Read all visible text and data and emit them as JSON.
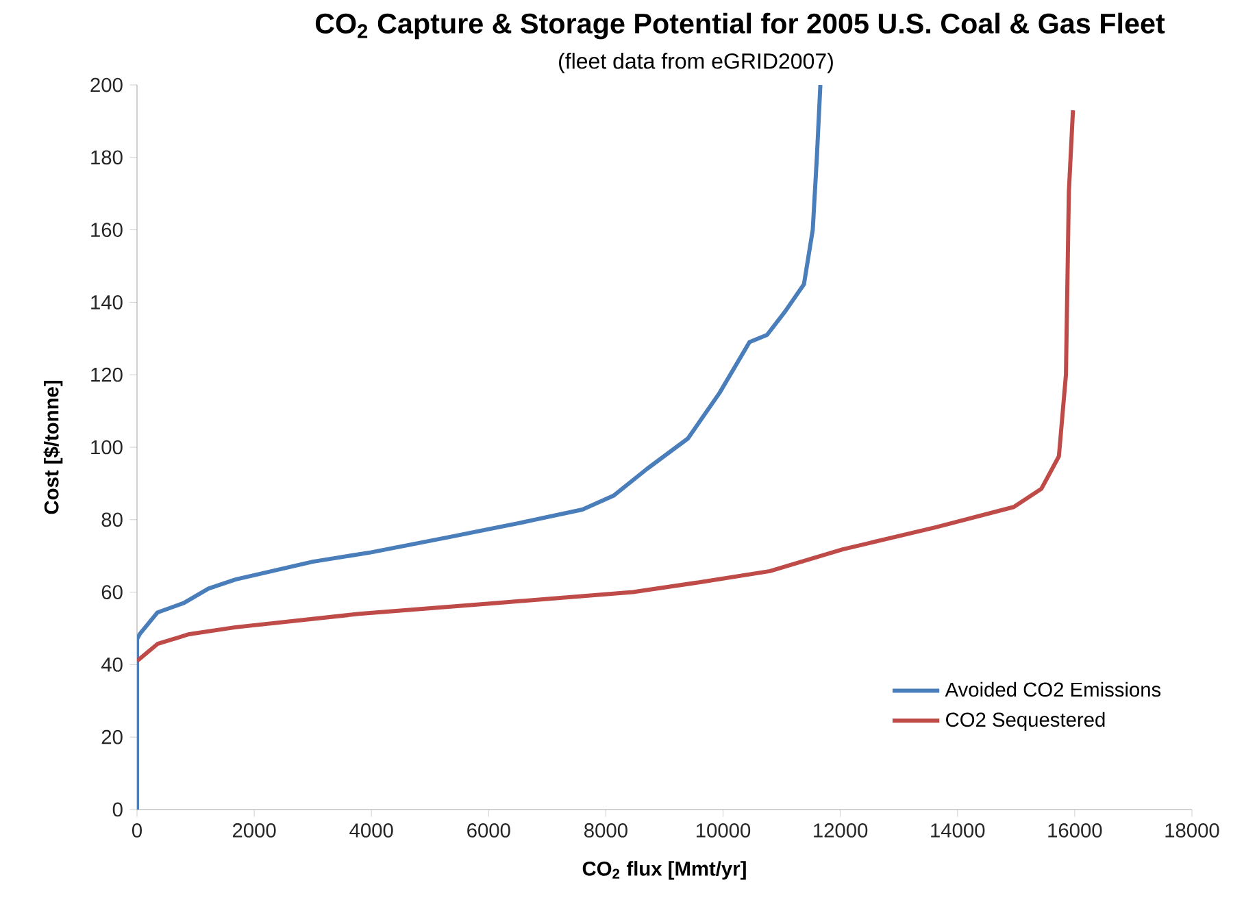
{
  "chart_data": {
    "type": "line",
    "title": "CO$_{2}$ Capture & Storage Potential for 2005 U.S. Coal & Gas Fleet",
    "subtitle": "(fleet data from eGRID2007)",
    "xlabel": "CO$_{2}$ flux [Mmt/yr]",
    "ylabel": "Cost [$/tonne]",
    "xlim": [
      0,
      18000
    ],
    "xticks": [
      0,
      2000,
      4000,
      6000,
      8000,
      10000,
      12000,
      14000,
      16000,
      18000
    ],
    "ylim": [
      0,
      200
    ],
    "yticks": [
      0,
      20,
      40,
      60,
      80,
      100,
      120,
      140,
      160,
      180,
      200
    ],
    "grid": false,
    "legend": "bottom right",
    "marker": "none",
    "line_style": "solid",
    "series": [
      {
        "name": "Avoided CO2 Emissions",
        "color": "#4a7ebb",
        "x": [
          0,
          0,
          50,
          350,
          800,
          1220,
          1680,
          3000,
          4000,
          5330,
          6500,
          7600,
          8130,
          8700,
          9400,
          9940,
          10450,
          10750,
          11060,
          11380,
          11530,
          11600,
          11660
        ],
        "values": [
          0,
          47,
          48.5,
          54.4,
          57,
          61,
          63.5,
          68.4,
          71,
          75.2,
          79,
          82.8,
          86.6,
          94,
          102.4,
          115,
          129,
          131,
          137.5,
          145,
          160,
          180,
          200
        ]
      },
      {
        "name": "CO2 Sequestered",
        "color": "#be4b48",
        "x": [
          0,
          350,
          890,
          1680,
          3790,
          6130,
          8460,
          9630,
          10800,
          12040,
          13630,
          14960,
          15430,
          15730,
          15850,
          15900,
          15970
        ],
        "values": [
          41,
          45.7,
          48.4,
          50.3,
          54,
          57,
          60,
          62.8,
          65.8,
          71.8,
          77.9,
          83.5,
          88.5,
          97.5,
          120,
          170.5,
          193
        ]
      }
    ]
  }
}
